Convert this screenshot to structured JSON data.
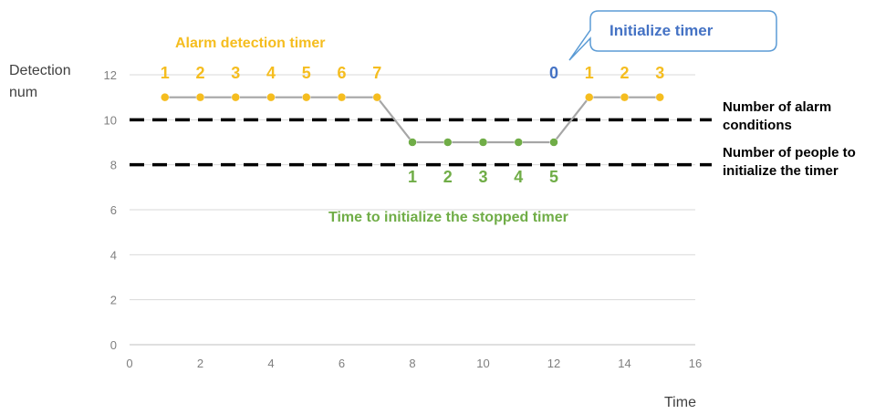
{
  "chart_data": {
    "type": "line",
    "x": [
      1,
      2,
      3,
      4,
      5,
      6,
      7,
      8,
      9,
      10,
      11,
      12,
      13,
      14,
      15
    ],
    "series": [
      {
        "values": [
          11,
          11,
          11,
          11,
          11,
          11,
          11,
          9,
          9,
          9,
          9,
          9,
          11,
          11,
          11
        ]
      }
    ],
    "marker_colors": [
      "#F5BD1F",
      "#F5BD1F",
      "#F5BD1F",
      "#F5BD1F",
      "#F5BD1F",
      "#F5BD1F",
      "#F5BD1F",
      "#70AD47",
      "#70AD47",
      "#70AD47",
      "#70AD47",
      "#70AD47",
      "#F5BD1F",
      "#F5BD1F",
      "#F5BD1F"
    ],
    "line_color": "#A6A6A6",
    "xlim": [
      0,
      16
    ],
    "ylim": [
      0,
      12
    ],
    "xticks": [
      0,
      2,
      4,
      6,
      8,
      10,
      12,
      14,
      16
    ],
    "yticks": [
      0,
      2,
      4,
      6,
      8,
      10,
      12
    ],
    "grid": "horizontal",
    "ylabel_line1": "Detection",
    "ylabel_line2": "num",
    "xlabel": "Time",
    "reference_lines": [
      {
        "y": 10,
        "label_line1": "Number of alarm",
        "label_line2": "conditions"
      },
      {
        "y": 8,
        "label_line1": "Number of people to",
        "label_line2": "initialize the timer"
      }
    ],
    "annotations": {
      "alarm_timer_title": "Alarm detection timer",
      "stop_timer_title": "Time to initialize the stopped timer",
      "callout": "Initialize timer",
      "alarm_counts": [
        {
          "x": 1,
          "label": "1"
        },
        {
          "x": 2,
          "label": "2"
        },
        {
          "x": 3,
          "label": "3"
        },
        {
          "x": 4,
          "label": "4"
        },
        {
          "x": 5,
          "label": "5"
        },
        {
          "x": 6,
          "label": "6"
        },
        {
          "x": 7,
          "label": "7"
        },
        {
          "x": 12,
          "label": "0"
        },
        {
          "x": 13,
          "label": "1"
        },
        {
          "x": 14,
          "label": "2"
        },
        {
          "x": 15,
          "label": "3"
        }
      ],
      "alarm_count_colors": [
        "#F5BD1F",
        "#F5BD1F",
        "#F5BD1F",
        "#F5BD1F",
        "#F5BD1F",
        "#F5BD1F",
        "#F5BD1F",
        "#4472C4",
        "#F5BD1F",
        "#F5BD1F",
        "#F5BD1F"
      ],
      "stop_counts": [
        {
          "x": 8,
          "label": "1"
        },
        {
          "x": 9,
          "label": "2"
        },
        {
          "x": 10,
          "label": "3"
        },
        {
          "x": 11,
          "label": "4"
        },
        {
          "x": 12,
          "label": "5"
        }
      ]
    },
    "colors": {
      "alarm": "#F5BD1F",
      "stop": "#70AD47",
      "initialize": "#4472C4",
      "reference": "#000000"
    }
  }
}
